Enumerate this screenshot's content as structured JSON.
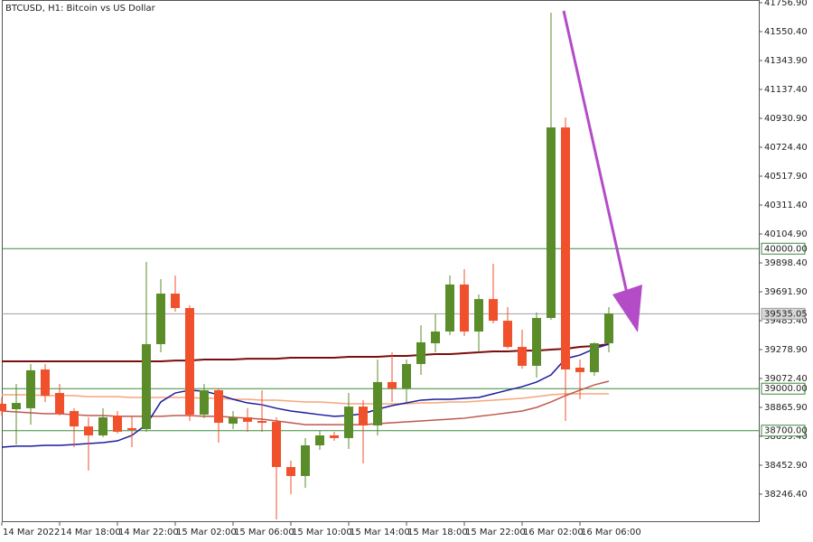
{
  "chart_data": {
    "type": "candlestick",
    "title": "BTCUSD, H1:  Bitcoin vs US Dollar",
    "categories": [
      "14 Mar 2022",
      null,
      null,
      null,
      "14 Mar 18:00",
      null,
      null,
      null,
      "14 Mar 22:00",
      null,
      null,
      null,
      "15 Mar 02:00",
      null,
      null,
      null,
      "15 Mar 06:00",
      null,
      null,
      null,
      "15 Mar 10:00",
      null,
      null,
      null,
      "15 Mar 14:00",
      null,
      null,
      null,
      "15 Mar 18:00",
      null,
      null,
      null,
      "15 Mar 22:00",
      null,
      null,
      null,
      "16 Mar 02:00",
      null,
      null,
      null,
      "16 Mar 06:00",
      null,
      null
    ],
    "open": [
      38892,
      38853,
      38860,
      39137,
      38969,
      38840,
      38730,
      38666,
      38808,
      38718,
      38711,
      39318,
      39679,
      39576,
      38814,
      38989,
      38750,
      38795,
      38769,
      38763,
      38440,
      38376,
      38595,
      38666,
      38647,
      38872,
      38737,
      39047,
      39002,
      39176,
      39324,
      39408,
      39744,
      39408,
      39640,
      39485,
      39298,
      39163,
      39505,
      40866,
      39150,
      39118,
      39324
    ],
    "high": [
      38937,
      39034,
      39176,
      39176,
      39034,
      38860,
      38795,
      38860,
      38840,
      38808,
      39905,
      39782,
      39808,
      39595,
      39034,
      39002,
      38840,
      38860,
      38989,
      38795,
      38485,
      38647,
      38698,
      38692,
      38969,
      38918,
      39208,
      39260,
      39208,
      39453,
      39531,
      39808,
      39853,
      39673,
      39892,
      39582,
      39421,
      39544,
      41686,
      40937,
      39208,
      39331,
      39582
    ],
    "low": [
      38808,
      38601,
      38743,
      38905,
      38808,
      38582,
      38414,
      38653,
      38679,
      38582,
      38692,
      39260,
      39550,
      38769,
      38789,
      38614,
      38711,
      38692,
      38692,
      38066,
      38246,
      38292,
      38563,
      38627,
      38569,
      38466,
      38666,
      38905,
      38905,
      39098,
      39260,
      39382,
      39376,
      39260,
      39466,
      39285,
      39143,
      39079,
      39492,
      38769,
      38924,
      39092,
      39260
    ],
    "close": [
      38840,
      38898,
      39131,
      38950,
      38821,
      38730,
      38666,
      38795,
      38692,
      38705,
      39318,
      39679,
      39576,
      38814,
      38989,
      38756,
      38795,
      38763,
      38756,
      38440,
      38376,
      38595,
      38666,
      38647,
      38872,
      38737,
      39047,
      39002,
      39176,
      39331,
      39408,
      39744,
      39408,
      39640,
      39485,
      39298,
      39163,
      39505,
      40866,
      39137,
      39118,
      39324,
      39537
    ],
    "up_color": "#5b8c2a",
    "down_color": "#f0502c",
    "lines": [
      {
        "color": "#7b0d0d",
        "values": [
          39195,
          39195,
          39195,
          39195,
          39195,
          39195,
          39195,
          39195,
          39195,
          39195,
          39195,
          39195,
          39201,
          39201,
          39208,
          39208,
          39208,
          39214,
          39214,
          39214,
          39221,
          39221,
          39221,
          39221,
          39227,
          39227,
          39227,
          39234,
          39234,
          39240,
          39247,
          39247,
          39253,
          39260,
          39266,
          39266,
          39272,
          39272,
          39279,
          39285,
          39298,
          39305,
          39318
        ]
      },
      {
        "color": "#f7a57a",
        "values": [
          38956,
          38956,
          38956,
          38950,
          38950,
          38950,
          38943,
          38943,
          38943,
          38937,
          38937,
          38937,
          38937,
          38937,
          38931,
          38931,
          38924,
          38924,
          38918,
          38918,
          38911,
          38905,
          38905,
          38898,
          38892,
          38892,
          38892,
          38892,
          38892,
          38898,
          38898,
          38905,
          38905,
          38911,
          38918,
          38924,
          38931,
          38943,
          38956,
          38963,
          38963,
          38963,
          38963
        ]
      },
      {
        "color": "#c0584f",
        "values": [
          38840,
          38834,
          38827,
          38821,
          38821,
          38814,
          38808,
          38808,
          38802,
          38802,
          38802,
          38802,
          38808,
          38808,
          38802,
          38802,
          38795,
          38789,
          38782,
          38769,
          38756,
          38743,
          38743,
          38743,
          38743,
          38743,
          38750,
          38756,
          38763,
          38769,
          38776,
          38782,
          38789,
          38802,
          38814,
          38827,
          38840,
          38866,
          38905,
          38950,
          38989,
          39027,
          39053
        ]
      },
      {
        "color": "#1c1c9c",
        "values": [
          38582,
          38589,
          38589,
          38595,
          38595,
          38601,
          38608,
          38614,
          38627,
          38666,
          38743,
          38905,
          38969,
          38989,
          38982,
          38956,
          38924,
          38898,
          38885,
          38860,
          38840,
          38827,
          38814,
          38802,
          38808,
          38821,
          38853,
          38879,
          38898,
          38918,
          38924,
          38924,
          38931,
          38937,
          38963,
          38989,
          39014,
          39047,
          39098,
          39214,
          39240,
          39285,
          39318
        ]
      }
    ],
    "levels": [
      {
        "value": 40000,
        "label": "40000.00",
        "color": "#3d8a3d"
      },
      {
        "value": 39535.05,
        "color": "#9e9e9e"
      },
      {
        "value": 39000,
        "label": "39000.00",
        "color": "#3d8a3d"
      },
      {
        "value": 38700,
        "label": "38700.00",
        "color": "#3d8a3d"
      }
    ],
    "ylim": [
      38046.5,
      41776.3
    ],
    "yticks": [
      {
        "value": 41756.9,
        "label": "41756.90"
      },
      {
        "value": 41550.4,
        "label": "41550.40"
      },
      {
        "value": 41343.9,
        "label": "41343.90"
      },
      {
        "value": 41137.4,
        "label": "41137.40"
      },
      {
        "value": 40930.9,
        "label": "40930.90"
      },
      {
        "value": 40724.4,
        "label": "40724.40"
      },
      {
        "value": 40517.9,
        "label": "40517.90"
      },
      {
        "value": 40311.4,
        "label": "40311.40"
      },
      {
        "value": 40104.9,
        "label": "40104.90"
      },
      {
        "value": 39898.4,
        "label": "39898.40"
      },
      {
        "value": 39691.9,
        "label": "39691.90"
      },
      {
        "value": 39485.4,
        "label": "39485.40"
      },
      {
        "value": 39278.9,
        "label": "39278.90"
      },
      {
        "value": 39072.4,
        "label": "39072.40"
      },
      {
        "value": 38865.9,
        "label": "38865.90"
      },
      {
        "value": 38659.4,
        "label": "38659.40"
      },
      {
        "value": 38452.9,
        "label": "38452.90"
      },
      {
        "value": 38246.4,
        "label": "38246.40"
      }
    ]
  }
}
